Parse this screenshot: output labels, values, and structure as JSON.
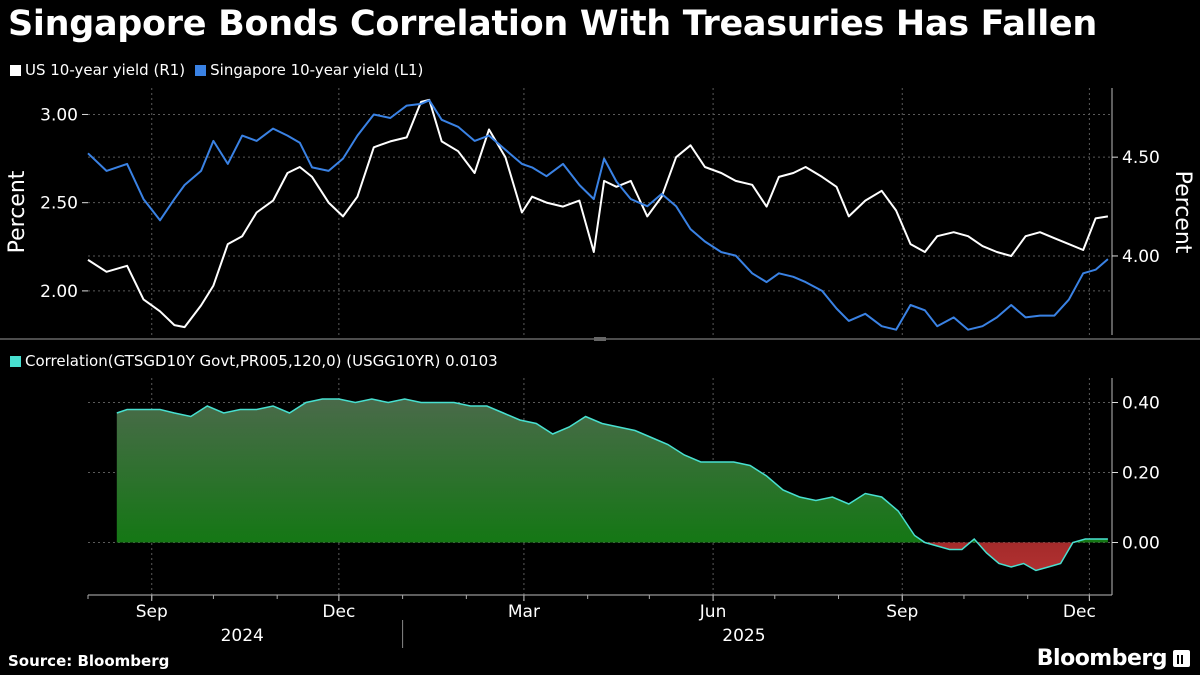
{
  "title": "Singapore Bonds Correlation With Treasuries Has Fallen",
  "source": "Source: Bloomberg",
  "brand": "Bloomberg",
  "colors": {
    "us": "#ffffff",
    "sg": "#3a82e4",
    "corr_line": "#48e0d0",
    "corr_pos": "#1f8a1f",
    "corr_neg": "#a02020",
    "grid": "#5a5a5a"
  },
  "chart_data": [
    {
      "type": "line",
      "ylabel_left": "Percent",
      "ylabel_right": "Percent",
      "y_left_ticks": [
        "2.00",
        "2.50",
        "3.00"
      ],
      "y_left_range": [
        1.75,
        3.15
      ],
      "y_right_ticks": [
        "4.00",
        "4.50"
      ],
      "y_right_range": [
        3.6,
        4.85
      ],
      "series": [
        {
          "name": "US 10-year yield (R1)",
          "axis": "right",
          "x": [
            "2024-08-01",
            "2024-08-10",
            "2024-08-20",
            "2024-08-28",
            "2024-09-05",
            "2024-09-12",
            "2024-09-17",
            "2024-09-25",
            "2024-10-01",
            "2024-10-08",
            "2024-10-15",
            "2024-10-22",
            "2024-10-30",
            "2024-11-06",
            "2024-11-12",
            "2024-11-18",
            "2024-11-26",
            "2024-12-03",
            "2024-12-10",
            "2024-12-18",
            "2024-12-26",
            "2025-01-03",
            "2025-01-10",
            "2025-01-14",
            "2025-01-20",
            "2025-01-28",
            "2025-02-05",
            "2025-02-12",
            "2025-02-20",
            "2025-02-28",
            "2025-03-05",
            "2025-03-12",
            "2025-03-20",
            "2025-03-28",
            "2025-04-04",
            "2025-04-09",
            "2025-04-15",
            "2025-04-22",
            "2025-04-30",
            "2025-05-07",
            "2025-05-14",
            "2025-05-21",
            "2025-05-28",
            "2025-06-05",
            "2025-06-12",
            "2025-06-20",
            "2025-06-27",
            "2025-07-03",
            "2025-07-10",
            "2025-07-16",
            "2025-07-24",
            "2025-07-31",
            "2025-08-06",
            "2025-08-14",
            "2025-08-22",
            "2025-08-29",
            "2025-09-05",
            "2025-09-12",
            "2025-09-18",
            "2025-09-26",
            "2025-10-03",
            "2025-10-10",
            "2025-10-17",
            "2025-10-24",
            "2025-10-31",
            "2025-11-07",
            "2025-11-14",
            "2025-11-21",
            "2025-11-28",
            "2025-12-04",
            "2025-12-10"
          ],
          "values": [
            3.98,
            3.92,
            3.95,
            3.78,
            3.72,
            3.65,
            3.64,
            3.75,
            3.85,
            4.06,
            4.1,
            4.22,
            4.28,
            4.42,
            4.45,
            4.4,
            4.27,
            4.2,
            4.3,
            4.55,
            4.58,
            4.6,
            4.78,
            4.79,
            4.58,
            4.53,
            4.42,
            4.64,
            4.5,
            4.22,
            4.3,
            4.27,
            4.25,
            4.28,
            4.02,
            4.38,
            4.35,
            4.38,
            4.2,
            4.3,
            4.5,
            4.56,
            4.45,
            4.42,
            4.38,
            4.36,
            4.25,
            4.4,
            4.42,
            4.45,
            4.4,
            4.35,
            4.2,
            4.28,
            4.33,
            4.23,
            4.06,
            4.02,
            4.1,
            4.12,
            4.1,
            4.05,
            4.02,
            4.0,
            4.1,
            4.12,
            4.09,
            4.06,
            4.03,
            4.19,
            4.2
          ]
        },
        {
          "name": "Singapore 10-year yield (L1)",
          "axis": "left",
          "x": [
            "2024-08-01",
            "2024-08-10",
            "2024-08-20",
            "2024-08-28",
            "2024-09-05",
            "2024-09-12",
            "2024-09-17",
            "2024-09-25",
            "2024-10-01",
            "2024-10-08",
            "2024-10-15",
            "2024-10-22",
            "2024-10-30",
            "2024-11-06",
            "2024-11-12",
            "2024-11-18",
            "2024-11-26",
            "2024-12-03",
            "2024-12-10",
            "2024-12-18",
            "2024-12-26",
            "2025-01-03",
            "2025-01-10",
            "2025-01-14",
            "2025-01-20",
            "2025-01-28",
            "2025-02-05",
            "2025-02-12",
            "2025-02-20",
            "2025-02-28",
            "2025-03-05",
            "2025-03-12",
            "2025-03-20",
            "2025-03-28",
            "2025-04-04",
            "2025-04-09",
            "2025-04-15",
            "2025-04-22",
            "2025-04-30",
            "2025-05-07",
            "2025-05-14",
            "2025-05-21",
            "2025-05-28",
            "2025-06-05",
            "2025-06-12",
            "2025-06-20",
            "2025-06-27",
            "2025-07-03",
            "2025-07-10",
            "2025-07-16",
            "2025-07-24",
            "2025-07-31",
            "2025-08-06",
            "2025-08-14",
            "2025-08-22",
            "2025-08-29",
            "2025-09-05",
            "2025-09-12",
            "2025-09-18",
            "2025-09-26",
            "2025-10-03",
            "2025-10-10",
            "2025-10-17",
            "2025-10-24",
            "2025-10-31",
            "2025-11-07",
            "2025-11-14",
            "2025-11-21",
            "2025-11-28",
            "2025-12-04",
            "2025-12-10"
          ],
          "values": [
            2.78,
            2.68,
            2.72,
            2.52,
            2.4,
            2.52,
            2.6,
            2.68,
            2.85,
            2.72,
            2.88,
            2.85,
            2.92,
            2.88,
            2.84,
            2.7,
            2.68,
            2.75,
            2.88,
            3.0,
            2.98,
            3.05,
            3.06,
            3.08,
            2.97,
            2.93,
            2.85,
            2.88,
            2.8,
            2.72,
            2.7,
            2.65,
            2.72,
            2.6,
            2.52,
            2.75,
            2.62,
            2.52,
            2.48,
            2.55,
            2.48,
            2.35,
            2.28,
            2.22,
            2.2,
            2.1,
            2.05,
            2.1,
            2.08,
            2.05,
            2.0,
            1.9,
            1.83,
            1.87,
            1.8,
            1.78,
            1.92,
            1.89,
            1.8,
            1.85,
            1.78,
            1.8,
            1.85,
            1.92,
            1.85,
            1.86,
            1.86,
            1.95,
            2.1,
            2.12,
            2.18
          ]
        }
      ]
    },
    {
      "type": "area",
      "legend": "Correlation(GTSGD10Y Govt,PR005,120,0) (USGG10YR) 0.0103",
      "y_ticks": [
        "0.00",
        "0.20",
        "0.40"
      ],
      "y_range": [
        -0.15,
        0.47
      ],
      "x": [
        "2024-08-15",
        "2024-08-20",
        "2024-08-28",
        "2024-09-05",
        "2024-09-12",
        "2024-09-20",
        "2024-09-28",
        "2024-10-06",
        "2024-10-14",
        "2024-10-22",
        "2024-10-30",
        "2024-11-07",
        "2024-11-15",
        "2024-11-23",
        "2024-12-01",
        "2024-12-09",
        "2024-12-17",
        "2024-12-25",
        "2025-01-02",
        "2025-01-10",
        "2025-01-18",
        "2025-01-26",
        "2025-02-03",
        "2025-02-11",
        "2025-02-19",
        "2025-02-27",
        "2025-03-07",
        "2025-03-15",
        "2025-03-23",
        "2025-03-31",
        "2025-04-08",
        "2025-04-16",
        "2025-04-24",
        "2025-05-02",
        "2025-05-10",
        "2025-05-18",
        "2025-05-26",
        "2025-06-03",
        "2025-06-11",
        "2025-06-19",
        "2025-06-27",
        "2025-07-05",
        "2025-07-13",
        "2025-07-21",
        "2025-07-29",
        "2025-08-06",
        "2025-08-14",
        "2025-08-22",
        "2025-08-30",
        "2025-09-07",
        "2025-09-12",
        "2025-09-18",
        "2025-09-24",
        "2025-09-30",
        "2025-10-06",
        "2025-10-12",
        "2025-10-18",
        "2025-10-24",
        "2025-10-30",
        "2025-11-05",
        "2025-11-11",
        "2025-11-17",
        "2025-11-23",
        "2025-11-29",
        "2025-12-04",
        "2025-12-10"
      ],
      "values": [
        0.37,
        0.38,
        0.38,
        0.38,
        0.37,
        0.36,
        0.39,
        0.37,
        0.38,
        0.38,
        0.39,
        0.37,
        0.4,
        0.41,
        0.41,
        0.4,
        0.41,
        0.4,
        0.41,
        0.4,
        0.4,
        0.4,
        0.39,
        0.39,
        0.37,
        0.35,
        0.34,
        0.31,
        0.33,
        0.36,
        0.34,
        0.33,
        0.32,
        0.3,
        0.28,
        0.25,
        0.23,
        0.23,
        0.23,
        0.22,
        0.19,
        0.15,
        0.13,
        0.12,
        0.13,
        0.11,
        0.14,
        0.13,
        0.09,
        0.02,
        0.0,
        -0.01,
        -0.02,
        -0.02,
        0.01,
        -0.03,
        -0.06,
        -0.07,
        -0.06,
        -0.08,
        -0.07,
        -0.06,
        0.0,
        0.01,
        0.01,
        0.01
      ]
    }
  ],
  "x_axis": {
    "months": [
      {
        "label": "Sep",
        "date": "2024-09-01"
      },
      {
        "label": "Dec",
        "date": "2024-12-01"
      },
      {
        "label": "Mar",
        "date": "2025-03-01"
      },
      {
        "label": "Jun",
        "date": "2025-06-01"
      },
      {
        "label": "Sep",
        "date": "2025-09-01"
      },
      {
        "label": "Dec",
        "date": "2025-12-01"
      }
    ],
    "years": [
      {
        "label": "2024",
        "date": "2024-10-15"
      },
      {
        "label": "2025",
        "date": "2025-06-16"
      }
    ],
    "year_divider": "2025-01-01",
    "range": [
      "2024-08-01",
      "2025-12-12"
    ]
  }
}
